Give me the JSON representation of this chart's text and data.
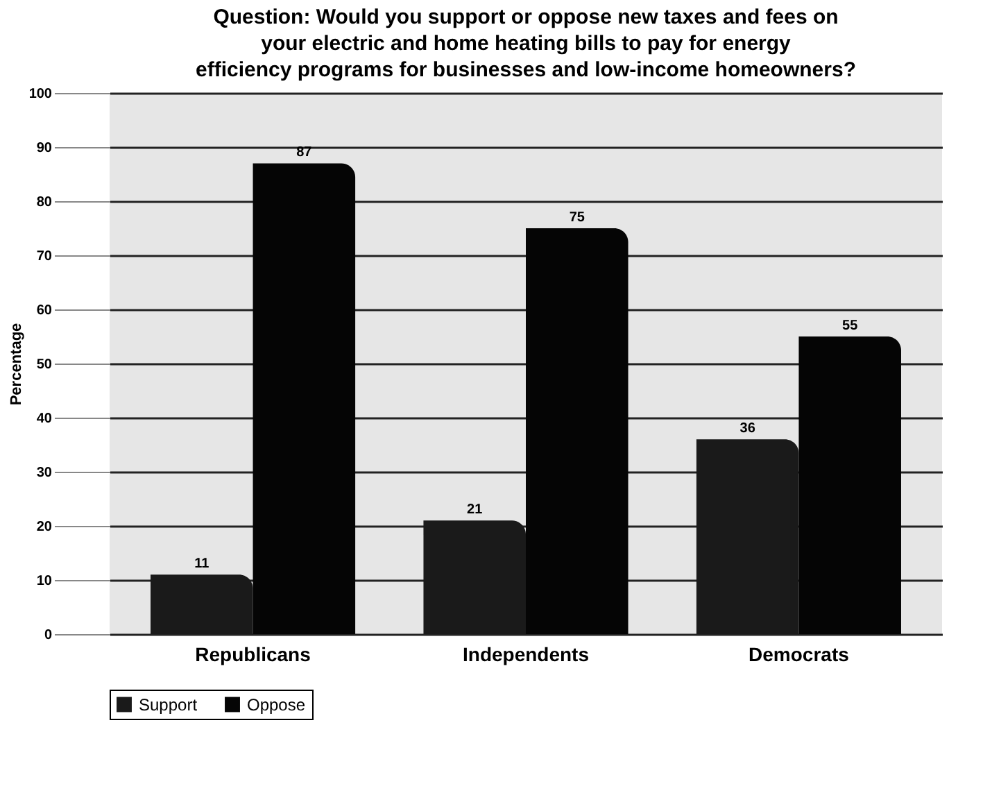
{
  "chart_data": {
    "type": "bar",
    "title": "Question: Would you support or oppose new taxes and fees on your electric and home heating bills to pay for energy efficiency programs for businesses and low-income homeowners?",
    "ylabel": "Percentage",
    "categories": [
      "Republicans",
      "Independents",
      "Democrats"
    ],
    "series": [
      {
        "name": "Support",
        "color": "#1a1a1a",
        "values": [
          11,
          21,
          36
        ]
      },
      {
        "name": "Oppose",
        "color": "#050505",
        "values": [
          87,
          75,
          55
        ]
      }
    ],
    "ylim": [
      0,
      100
    ],
    "yticks": [
      0,
      10,
      20,
      30,
      40,
      50,
      60,
      70,
      80,
      90,
      100
    ],
    "grid": "y",
    "legend": "bottom",
    "data_labels": true
  }
}
